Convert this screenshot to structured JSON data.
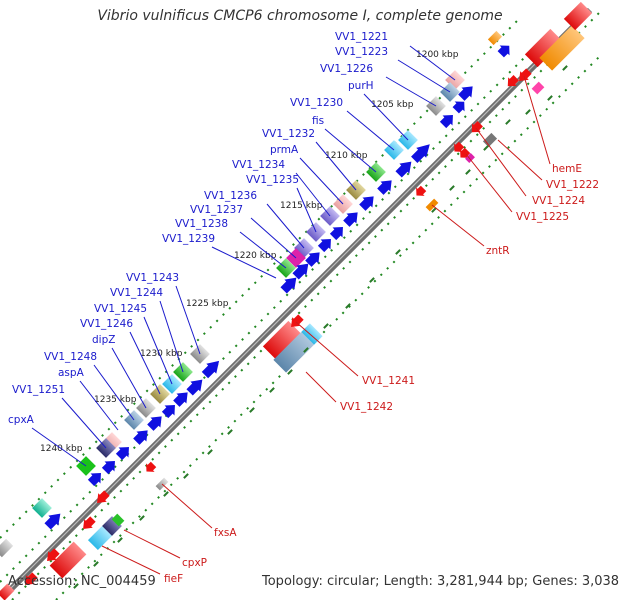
{
  "title": "Vibrio vulnificus CMCP6 chromosome I, complete genome",
  "footer": {
    "accession": "Accession: NC_004459",
    "summary": "Topology: circular; Length: 3,281,944 bp; Genes: 3,038"
  },
  "colors": {
    "forward_label": "#1a1acc",
    "reverse_label": "#cc1a1a",
    "backbone": "#777777",
    "grid_dots": "#228822",
    "tick": "#2a7a2a",
    "cds_arrow": "#1010e0",
    "rna_arrow": "#ee1111"
  },
  "kbp_ticks": [
    "1200 kbp",
    "1205 kbp",
    "1210 kbp",
    "1215 kbp",
    "1220 kbp",
    "1225 kbp",
    "1230 kbp",
    "1235 kbp",
    "1240 kbp"
  ],
  "forward_genes": [
    "VV1_1221",
    "VV1_1223",
    "VV1_1226",
    "purH",
    "VV1_1230",
    "fis",
    "VV1_1232",
    "prmA",
    "VV1_1234",
    "VV1_1235",
    "VV1_1236",
    "VV1_1237",
    "VV1_1238",
    "VV1_1239",
    "VV1_1243",
    "VV1_1244",
    "VV1_1245",
    "VV1_1246",
    "dipZ",
    "VV1_1248",
    "aspA",
    "VV1_1251",
    "cpxA"
  ],
  "reverse_genes": [
    "hemE",
    "VV1_1222",
    "VV1_1224",
    "VV1_1225",
    "zntR",
    "VV1_1241",
    "VV1_1242",
    "fxsA",
    "cpxP",
    "fieF"
  ]
}
